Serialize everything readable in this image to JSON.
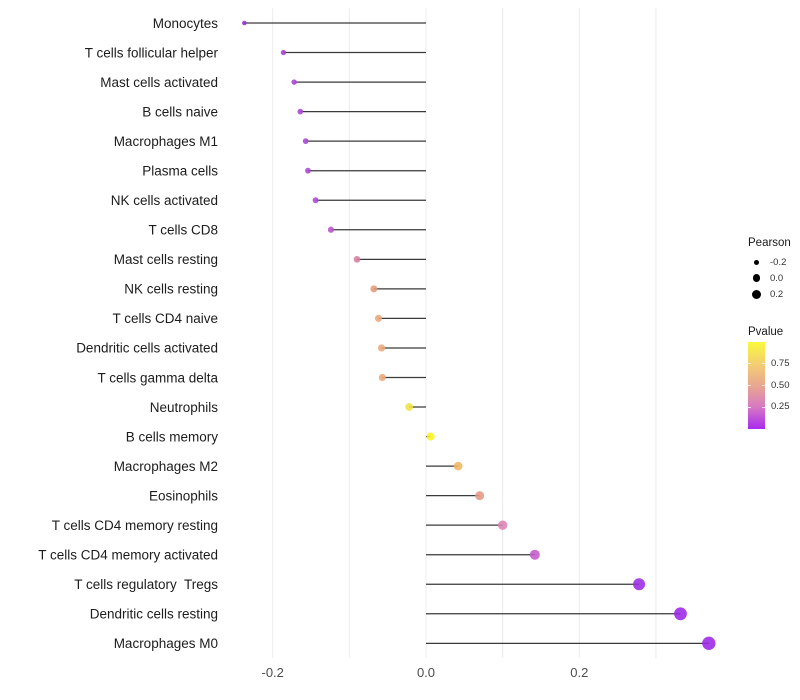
{
  "chart_data": {
    "type": "lollipop",
    "title": "",
    "xlabel": "",
    "ylabel": "",
    "xlim": [
      -0.27,
      0.4
    ],
    "baseline": 0.0,
    "grid": true,
    "gridlines": [
      -0.2,
      -0.1,
      0.0,
      0.1,
      0.2,
      0.3
    ],
    "x_ticks": [
      {
        "value": -0.2,
        "label": "-0.2"
      },
      {
        "value": 0.0,
        "label": "0.0"
      },
      {
        "value": 0.2,
        "label": "0.2"
      }
    ],
    "points": [
      {
        "label": "Monocytes",
        "pearson": -0.237,
        "color": "#9031C8"
      },
      {
        "label": "T cells follicular helper",
        "pearson": -0.186,
        "color": "#A440D2"
      },
      {
        "label": "Mast cells activated",
        "pearson": -0.172,
        "color": "#A844D4"
      },
      {
        "label": "B cells naive",
        "pearson": -0.164,
        "color": "#A846D6"
      },
      {
        "label": "Macrophages M1",
        "pearson": -0.157,
        "color": "#A847D6"
      },
      {
        "label": "Plasma cells",
        "pearson": -0.154,
        "color": "#A847D6"
      },
      {
        "label": "NK cells activated",
        "pearson": -0.144,
        "color": "#AB4AD6"
      },
      {
        "label": "T cells CD8",
        "pearson": -0.124,
        "color": "#BC52CE"
      },
      {
        "label": "Mast cells resting",
        "pearson": -0.09,
        "color": "#D8809E"
      },
      {
        "label": "NK cells resting",
        "pearson": -0.068,
        "color": "#E59B7B"
      },
      {
        "label": "T cells CD4 naive",
        "pearson": -0.062,
        "color": "#EAA67C"
      },
      {
        "label": "Dendritic cells activated",
        "pearson": -0.058,
        "color": "#EBA87B"
      },
      {
        "label": "T cells gamma delta",
        "pearson": -0.057,
        "color": "#EBA87B"
      },
      {
        "label": "Neutrophils",
        "pearson": -0.022,
        "color": "#EFE23E"
      },
      {
        "label": "B cells memory",
        "pearson": 0.006,
        "color": "#FAF21F"
      },
      {
        "label": "Macrophages M2",
        "pearson": 0.042,
        "color": "#EFB763"
      },
      {
        "label": "Eosinophils",
        "pearson": 0.07,
        "color": "#E39A84"
      },
      {
        "label": "T cells CD4 memory resting",
        "pearson": 0.1,
        "color": "#D983B3"
      },
      {
        "label": "T cells CD4 memory activated",
        "pearson": 0.142,
        "color": "#C45ACC"
      },
      {
        "label": "T cells regulatory  Tregs",
        "pearson": 0.278,
        "color": "#9C2BE3"
      },
      {
        "label": "Dendritic cells resting",
        "pearson": 0.332,
        "color": "#9C27E6"
      },
      {
        "label": "Macrophages M0",
        "pearson": 0.369,
        "color": "#9C27E6"
      }
    ],
    "legend_pearson": {
      "title": "Pearson",
      "entries": [
        {
          "label": "-0.2",
          "diameter": 5
        },
        {
          "label": "0.0",
          "diameter": 7.5
        },
        {
          "label": "0.2",
          "diameter": 9
        }
      ]
    },
    "legend_pvalue": {
      "title": "Pvalue",
      "tick_labels": [
        "0.75",
        "0.50",
        "0.25"
      ],
      "gradient_stops_top_to_bottom": [
        {
          "pos": 0.0,
          "color": "#F9F93B"
        },
        {
          "pos": 0.25,
          "color": "#F3CF72"
        },
        {
          "pos": 0.5,
          "color": "#E9A78F"
        },
        {
          "pos": 0.75,
          "color": "#D678C4"
        },
        {
          "pos": 1.0,
          "color": "#A82BEE"
        }
      ]
    }
  },
  "colors": {
    "background": "#FFFFFF",
    "gridline": "#ECECEC",
    "stem": "#3A3A3A",
    "label_text": "#1C1C1C",
    "axis_text": "#4D4D4D",
    "legend_dot": "#000000"
  }
}
